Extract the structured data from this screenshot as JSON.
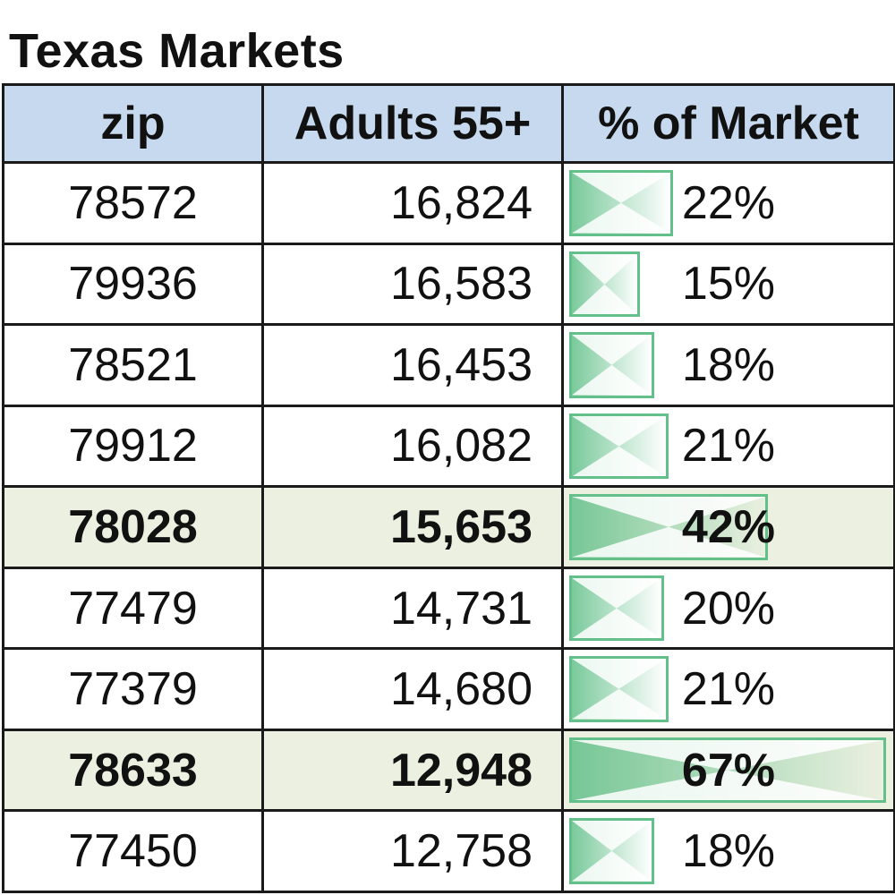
{
  "title": "Texas Markets",
  "columns": {
    "zip": "zip",
    "adults": "Adults 55+",
    "pct": "% of Market"
  },
  "bar_color": "#63c08a",
  "header_bg": "#c6d9ee",
  "highlight_bg": "#ebf0e0",
  "rows": [
    {
      "zip": "78572",
      "adults": "16,824",
      "pct_label": "22%",
      "pct": 22,
      "highlight": false
    },
    {
      "zip": "79936",
      "adults": "16,583",
      "pct_label": "15%",
      "pct": 15,
      "highlight": false
    },
    {
      "zip": "78521",
      "adults": "16,453",
      "pct_label": "18%",
      "pct": 18,
      "highlight": false
    },
    {
      "zip": "79912",
      "adults": "16,082",
      "pct_label": "21%",
      "pct": 21,
      "highlight": false
    },
    {
      "zip": "78028",
      "adults": "15,653",
      "pct_label": "42%",
      "pct": 42,
      "highlight": true
    },
    {
      "zip": "77479",
      "adults": "14,731",
      "pct_label": "20%",
      "pct": 20,
      "highlight": false
    },
    {
      "zip": "77379",
      "adults": "14,680",
      "pct_label": "21%",
      "pct": 21,
      "highlight": false
    },
    {
      "zip": "78633",
      "adults": "12,948",
      "pct_label": "67%",
      "pct": 67,
      "highlight": true
    },
    {
      "zip": "77450",
      "adults": "12,758",
      "pct_label": "18%",
      "pct": 18,
      "highlight": false
    }
  ]
}
